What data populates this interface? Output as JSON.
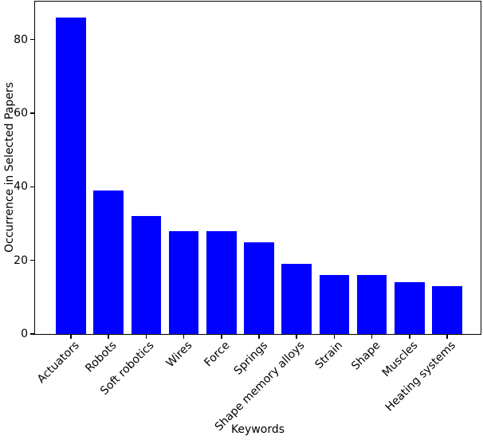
{
  "chart_data": {
    "type": "bar",
    "title": "",
    "categories": [
      "Actuators",
      "Robots",
      "Soft robotics",
      "Wires",
      "Force",
      "Springs",
      "Shape memory alloys",
      "Strain",
      "Shape",
      "Muscles",
      "Heating systems"
    ],
    "values": [
      86,
      39,
      32,
      28,
      28,
      25,
      19,
      16,
      16,
      14,
      13
    ],
    "xlabel": "Keywords",
    "ylabel": "Occurrence in Selected Papers",
    "yticks": [
      0,
      20,
      40,
      60,
      80
    ],
    "ylim": [
      0,
      90.3
    ],
    "bar_color": "#0000ff",
    "spine_color": "#000000",
    "background_color": "#ffffff",
    "grid": false,
    "legend": null,
    "xtick_rotation_deg": 45
  }
}
